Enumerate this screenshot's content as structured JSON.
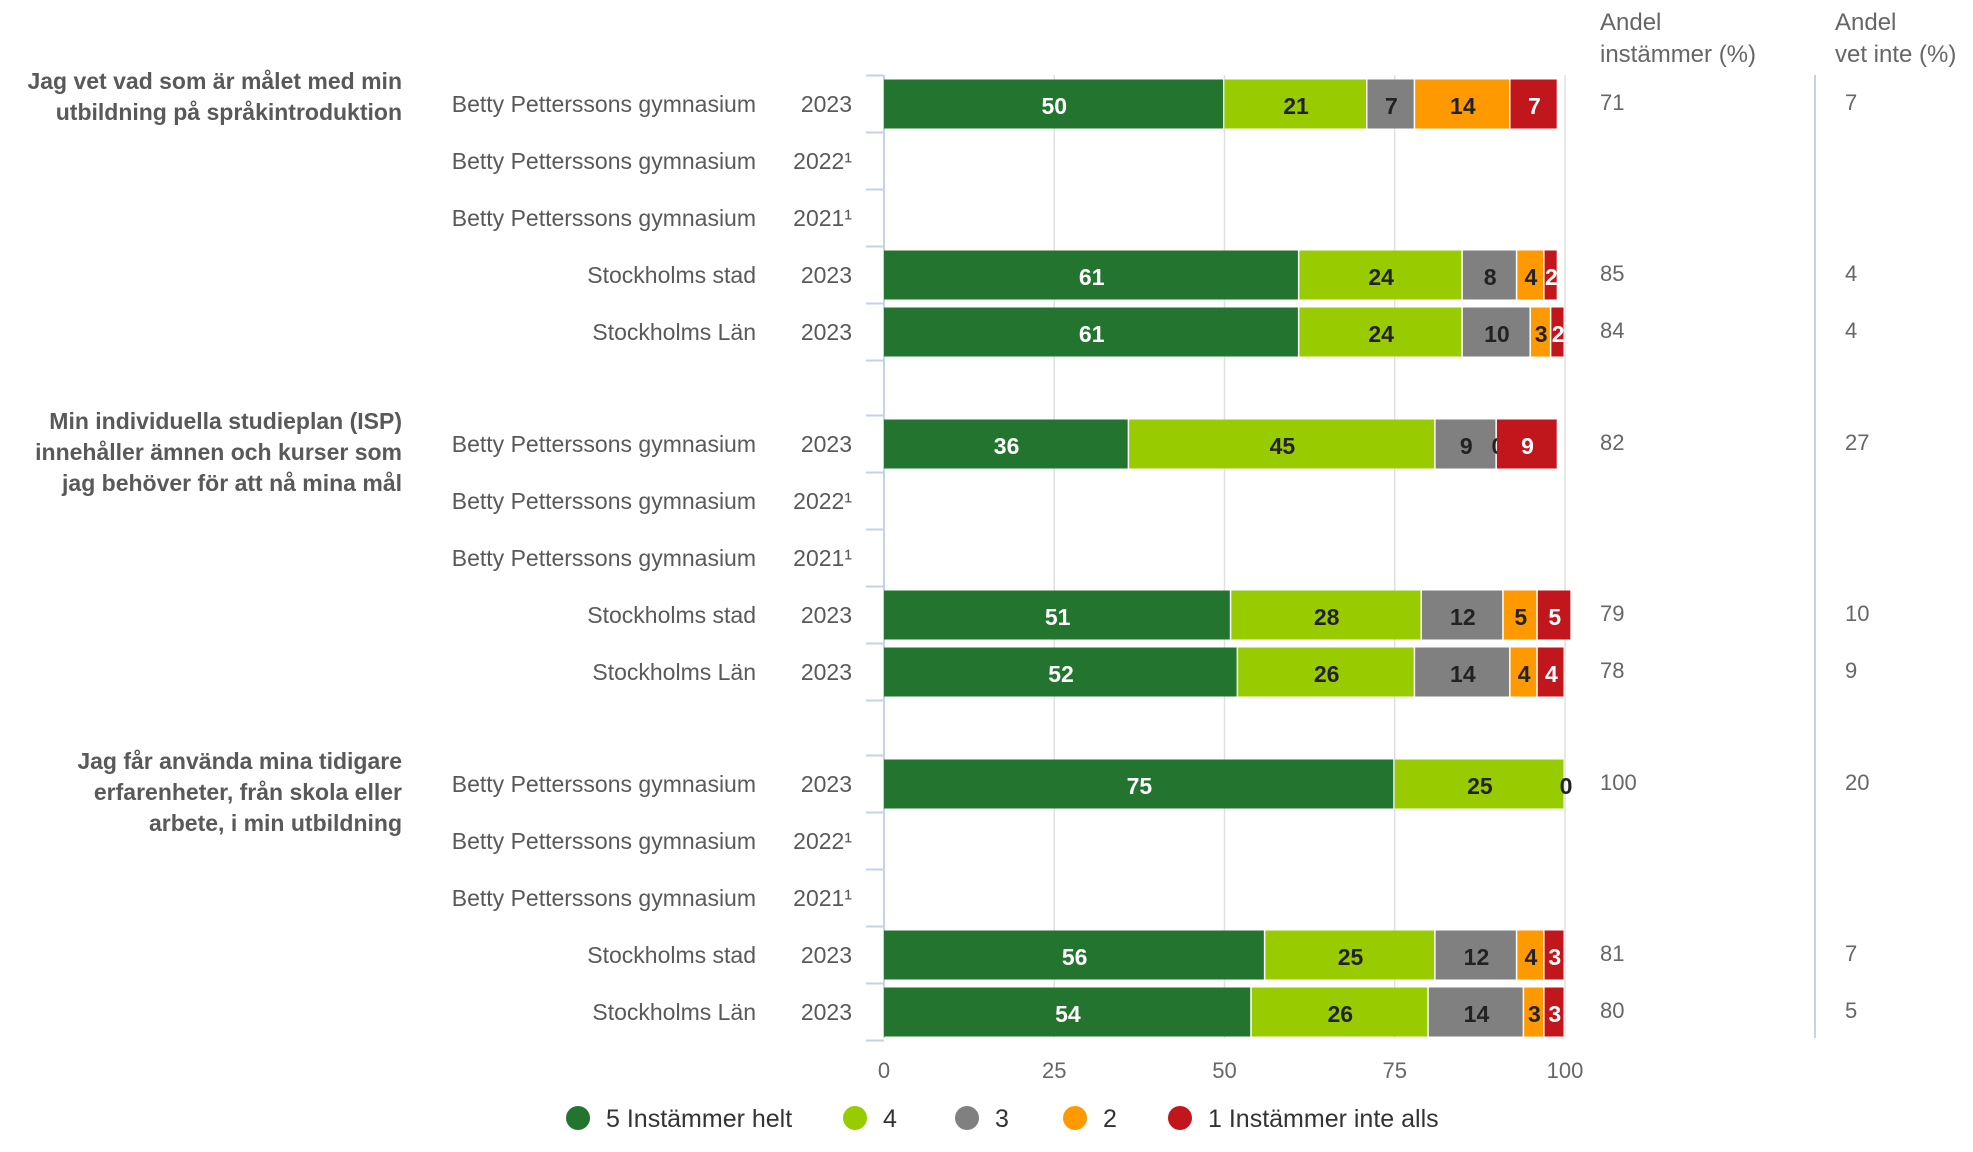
{
  "chart_data": {
    "type": "bar",
    "orientation": "horizontal",
    "stacked": true,
    "xlim": [
      0,
      100
    ],
    "xticks": [
      "0",
      "25",
      "50",
      "75",
      "100"
    ],
    "grid": true,
    "legend_placement": "bottom",
    "column_headers": {
      "agree_line1": "Andel",
      "agree_line2": "instämmer (%)",
      "dontknow_line1": "Andel",
      "dontknow_line2": "vet inte (%)"
    },
    "series": [
      {
        "name": "5 Instämmer helt",
        "color": "#23742f",
        "label_color": "#ffffff"
      },
      {
        "name": "4",
        "color": "#99cc00",
        "label_color": "#222222"
      },
      {
        "name": "3",
        "color": "#808080",
        "label_color": "#222222"
      },
      {
        "name": "2",
        "color": "#ff9900",
        "label_color": "#222222"
      },
      {
        "name": "1 Instämmer inte alls",
        "color": "#c0161c",
        "label_color": "#ffffff"
      }
    ],
    "questions": [
      {
        "title_lines": [
          "Jag vet vad som är målet med min",
          "utbildning på språkintroduktion"
        ],
        "rows": [
          {
            "label": "Betty Petterssons gymnasium",
            "year": "2023",
            "values": [
              50,
              21,
              7,
              14,
              7
            ],
            "labels": [
              "50",
              "21",
              "7",
              "14",
              "7"
            ],
            "agree": "71",
            "dont_know": "7"
          },
          {
            "label": "Betty Petterssons gymnasium",
            "year": "2022¹",
            "values": null,
            "labels": null,
            "agree": "",
            "dont_know": ""
          },
          {
            "label": "Betty Petterssons gymnasium",
            "year": "2021¹",
            "values": null,
            "labels": null,
            "agree": "",
            "dont_know": ""
          },
          {
            "label": "Stockholms stad",
            "year": "2023",
            "values": [
              61,
              24,
              8,
              4,
              2
            ],
            "labels": [
              "61",
              "24",
              "8",
              "4",
              "2"
            ],
            "agree": "85",
            "dont_know": "4"
          },
          {
            "label": "Stockholms Län",
            "year": "2023",
            "values": [
              61,
              24,
              10,
              3,
              2
            ],
            "labels": [
              "61",
              "24",
              "10",
              "3",
              "2"
            ],
            "agree": "84",
            "dont_know": "4"
          }
        ]
      },
      {
        "title_lines": [
          "Min individuella studieplan (ISP)",
          "innehåller ämnen och kurser som",
          "jag behöver för att nå mina mål"
        ],
        "rows": [
          {
            "label": "Betty Petterssons gymnasium",
            "year": "2023",
            "values": [
              36,
              45,
              9,
              0,
              9
            ],
            "labels": [
              "36",
              "45",
              "9",
              "0",
              "9"
            ],
            "agree": "82",
            "dont_know": "27"
          },
          {
            "label": "Betty Petterssons gymnasium",
            "year": "2022¹",
            "values": null,
            "labels": null,
            "agree": "",
            "dont_know": ""
          },
          {
            "label": "Betty Petterssons gymnasium",
            "year": "2021¹",
            "values": null,
            "labels": null,
            "agree": "",
            "dont_know": ""
          },
          {
            "label": "Stockholms stad",
            "year": "2023",
            "values": [
              51,
              28,
              12,
              5,
              5
            ],
            "labels": [
              "51",
              "28",
              "12",
              "5",
              "5"
            ],
            "agree": "79",
            "dont_know": "10"
          },
          {
            "label": "Stockholms Län",
            "year": "2023",
            "values": [
              52,
              26,
              14,
              4,
              4
            ],
            "labels": [
              "52",
              "26",
              "14",
              "4",
              "4"
            ],
            "agree": "78",
            "dont_know": "9"
          }
        ]
      },
      {
        "title_lines": [
          "Jag får använda mina tidigare",
          "erfarenheter, från skola eller",
          "arbete, i min utbildning"
        ],
        "rows": [
          {
            "label": "Betty Petterssons gymnasium",
            "year": "2023",
            "values": [
              75,
              25,
              0,
              0,
              0
            ],
            "labels": [
              "75",
              "25",
              "0",
              "",
              ""
            ],
            "agree": "100",
            "dont_know": "20"
          },
          {
            "label": "Betty Petterssons gymnasium",
            "year": "2022¹",
            "values": null,
            "labels": null,
            "agree": "",
            "dont_know": ""
          },
          {
            "label": "Betty Petterssons gymnasium",
            "year": "2021¹",
            "values": null,
            "labels": null,
            "agree": "",
            "dont_know": ""
          },
          {
            "label": "Stockholms stad",
            "year": "2023",
            "values": [
              56,
              25,
              12,
              4,
              3
            ],
            "labels": [
              "56",
              "25",
              "12",
              "4",
              "3"
            ],
            "agree": "81",
            "dont_know": "7"
          },
          {
            "label": "Stockholms Län",
            "year": "2023",
            "values": [
              54,
              26,
              14,
              3,
              3
            ],
            "labels": [
              "54",
              "26",
              "14",
              "3",
              "3"
            ],
            "agree": "80",
            "dont_know": "5"
          }
        ]
      }
    ]
  }
}
